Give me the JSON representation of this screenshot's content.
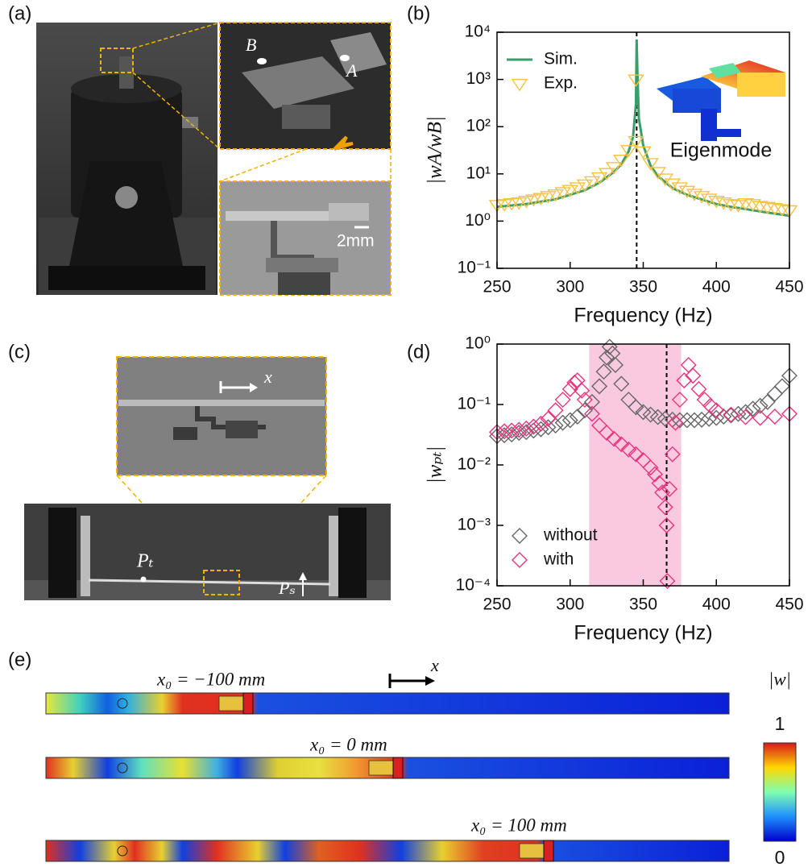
{
  "chart_data": [
    {
      "type": "scatter",
      "xlabel": "Frequency (Hz)",
      "ylabel": "|wA/wB|",
      "xlim": [
        250,
        450
      ],
      "xticks": [
        250,
        300,
        350,
        400,
        450
      ],
      "ylim": [
        0.1,
        10000
      ],
      "log_y": true,
      "yticks": [
        {
          "value": 0.1,
          "label": "10⁻¹"
        },
        {
          "value": 1,
          "label": "10⁰"
        },
        {
          "value": 10,
          "label": "10¹"
        },
        {
          "value": 100,
          "label": "10²"
        },
        {
          "value": 1000,
          "label": "10³"
        },
        {
          "value": 10000,
          "label": "10⁴"
        }
      ],
      "vline": 345.5,
      "legend": "upper left",
      "annotation": "Eigenmode",
      "series": [
        {
          "name": "Sim.",
          "color": "#3a9e6a",
          "style": "line",
          "x": [
            250,
            270,
            290,
            310,
            320,
            330,
            335,
            340,
            343,
            345,
            345.5,
            346,
            347,
            350,
            355,
            360,
            370,
            380,
            400,
            410,
            415,
            420,
            430,
            450
          ],
          "values": [
            2,
            2.3,
            2.9,
            4.5,
            6.5,
            11,
            16,
            30,
            60,
            300,
            7000,
            1500,
            150,
            40,
            15,
            9,
            5,
            3.6,
            2.3,
            2,
            1.9,
            1.8,
            1.6,
            1.3
          ]
        },
        {
          "name": "Exp.",
          "color": "#f5c242",
          "style": "triangle",
          "x": [
            250,
            255,
            260,
            265,
            270,
            275,
            280,
            285,
            290,
            295,
            300,
            305,
            310,
            315,
            320,
            325,
            330,
            335,
            340,
            345,
            345,
            350,
            355,
            360,
            365,
            370,
            375,
            380,
            385,
            390,
            395,
            400,
            405,
            410,
            415,
            420,
            425,
            430,
            435,
            440,
            445,
            450
          ],
          "values": [
            2.2,
            2.3,
            2.4,
            2.5,
            2.7,
            2.9,
            3.1,
            3.4,
            3.7,
            4.1,
            4.6,
            5.2,
            6,
            7,
            8.5,
            10.5,
            14,
            20,
            32,
            50,
            1000,
            30,
            17,
            11,
            8,
            6.3,
            5.2,
            4.4,
            3.8,
            3.4,
            3,
            2.7,
            2.5,
            2.3,
            2.2,
            2.4,
            2.3,
            2.1,
            2,
            1.9,
            1.8,
            1.7
          ]
        }
      ]
    },
    {
      "type": "scatter",
      "xlabel": "Frequency (Hz)",
      "ylabel": "|wₚₜ|",
      "xlim": [
        250,
        450
      ],
      "xticks": [
        250,
        300,
        350,
        400,
        450
      ],
      "ylim": [
        0.0001,
        1
      ],
      "log_y": true,
      "yticks": [
        {
          "value": 0.0001,
          "label": "10⁻⁴"
        },
        {
          "value": 0.001,
          "label": "10⁻³"
        },
        {
          "value": 0.01,
          "label": "10⁻²"
        },
        {
          "value": 0.1,
          "label": "10⁻¹"
        },
        {
          "value": 1,
          "label": "10⁰"
        }
      ],
      "vline": 366,
      "shaded_region": [
        313,
        376
      ],
      "shade_color": "#f9c9df",
      "legend": "lower left",
      "series": [
        {
          "name": "without",
          "color": "#666666",
          "style": "diamond",
          "x": [
            250,
            255,
            260,
            265,
            270,
            275,
            280,
            285,
            290,
            295,
            300,
            305,
            310,
            315,
            320,
            323,
            325,
            327,
            329,
            331,
            335,
            340,
            345,
            350,
            355,
            360,
            365,
            370,
            375,
            380,
            385,
            390,
            395,
            400,
            405,
            410,
            415,
            420,
            425,
            430,
            435,
            440,
            445,
            450
          ],
          "values": [
            0.03,
            0.031,
            0.032,
            0.034,
            0.035,
            0.037,
            0.039,
            0.042,
            0.045,
            0.05,
            0.055,
            0.063,
            0.08,
            0.11,
            0.2,
            0.35,
            0.6,
            0.9,
            0.7,
            0.45,
            0.22,
            0.12,
            0.09,
            0.075,
            0.068,
            0.062,
            0.058,
            0.056,
            0.055,
            0.055,
            0.055,
            0.056,
            0.058,
            0.06,
            0.063,
            0.066,
            0.07,
            0.075,
            0.085,
            0.095,
            0.11,
            0.15,
            0.2,
            0.3
          ]
        },
        {
          "name": "with",
          "color": "#e8347f",
          "style": "diamond",
          "x": [
            250,
            255,
            260,
            265,
            270,
            275,
            280,
            285,
            290,
            295,
            300,
            303,
            305,
            308,
            310,
            315,
            320,
            325,
            330,
            335,
            340,
            345,
            350,
            355,
            358,
            361,
            363,
            365,
            366,
            366.5,
            368,
            370,
            372,
            375,
            378,
            381,
            384,
            388,
            392,
            396,
            400,
            410,
            420,
            430,
            440,
            450
          ],
          "values": [
            0.035,
            0.036,
            0.037,
            0.038,
            0.04,
            0.043,
            0.048,
            0.058,
            0.08,
            0.12,
            0.18,
            0.23,
            0.25,
            0.17,
            0.12,
            0.07,
            0.045,
            0.034,
            0.027,
            0.022,
            0.018,
            0.015,
            0.012,
            0.009,
            0.007,
            0.005,
            0.0035,
            0.002,
            0.001,
            0.00012,
            0.004,
            0.015,
            0.05,
            0.12,
            0.25,
            0.45,
            0.3,
            0.18,
            0.12,
            0.095,
            0.08,
            0.068,
            0.062,
            0.06,
            0.063,
            0.07
          ]
        }
      ]
    }
  ],
  "panel_labels": [
    "(a)",
    "(b)",
    "(c)",
    "(d)",
    "(e)"
  ],
  "photo_a": {
    "labels": [
      "B",
      "A",
      "2mm"
    ]
  },
  "photo_c": {
    "labels": [
      "x",
      "Pₜ",
      "Pₛ"
    ]
  },
  "panel_e": {
    "arrow_label": "x",
    "rows": [
      "x₀ = −100 mm",
      "x₀ = 0 mm",
      "x₀ = 100 mm"
    ],
    "colorbar": {
      "label": "|w|",
      "ticks": [
        1,
        0
      ]
    }
  }
}
